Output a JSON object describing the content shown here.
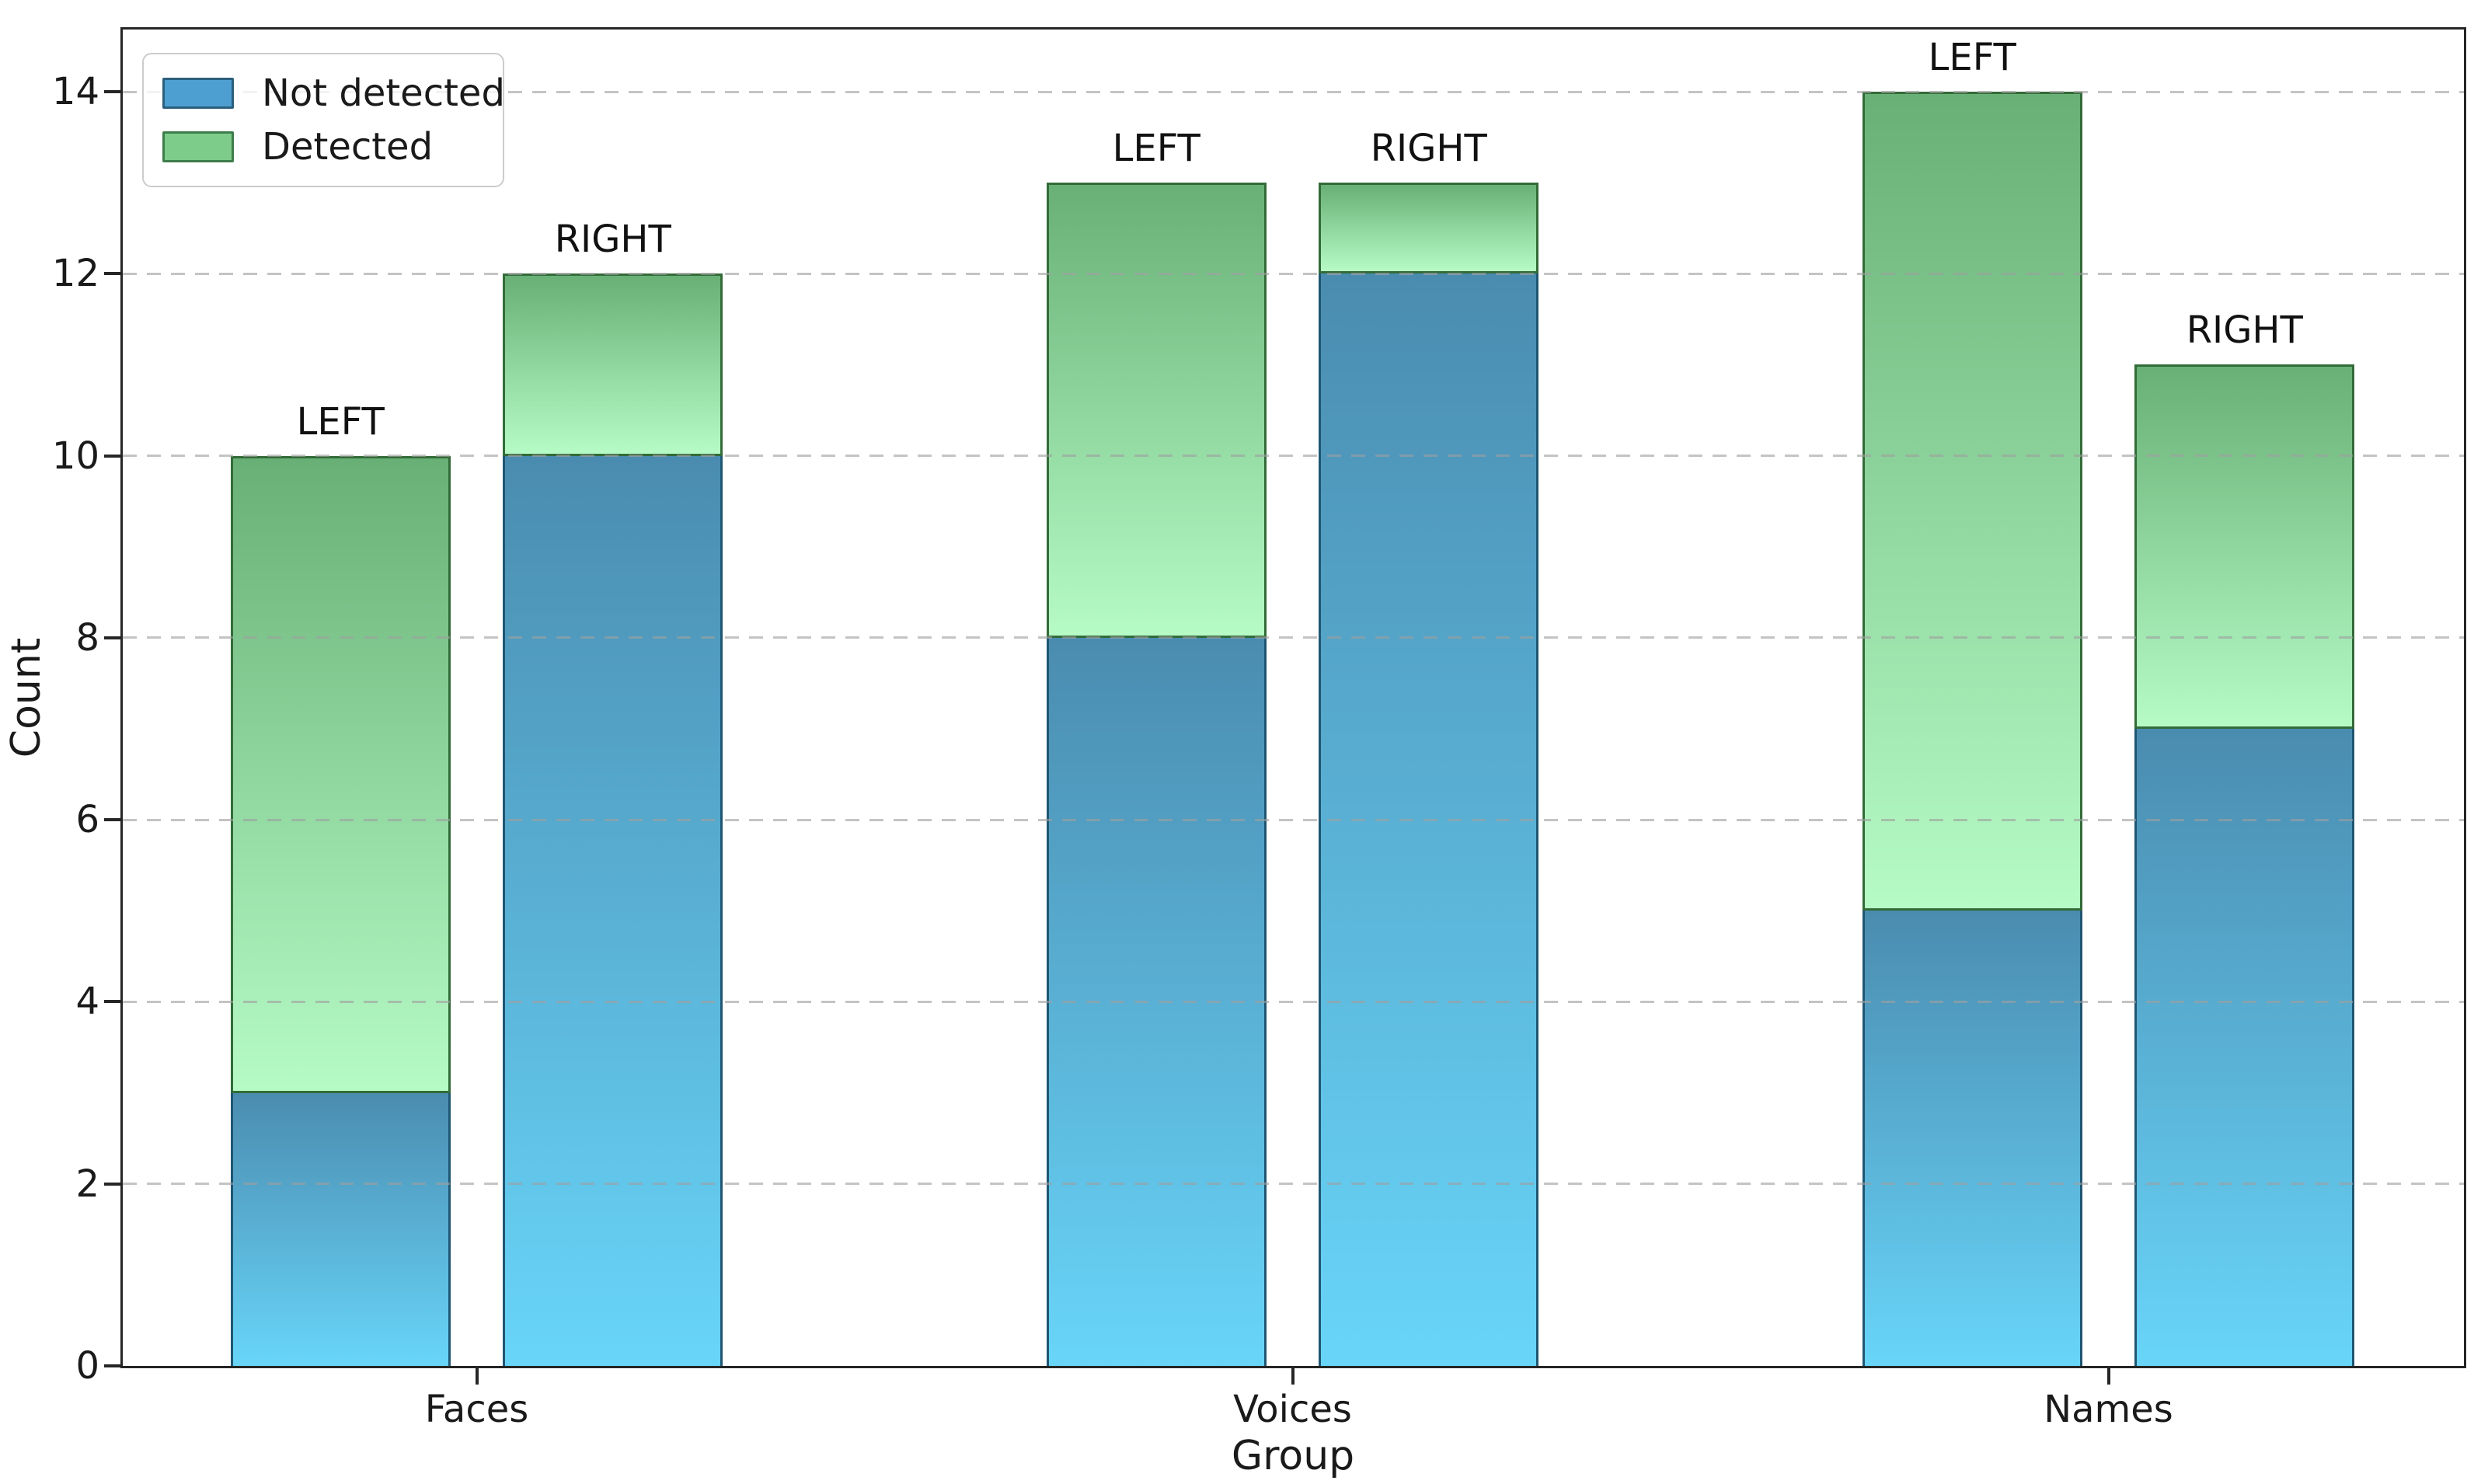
{
  "chart_data": {
    "type": "bar",
    "stacked": true,
    "title": "",
    "xlabel": "Group",
    "ylabel": "Count",
    "categories": [
      "Faces",
      "Voices",
      "Names"
    ],
    "sides": [
      "LEFT",
      "RIGHT"
    ],
    "series": [
      {
        "name": "Not detected",
        "values": [
          [
            3,
            10
          ],
          [
            8,
            12
          ],
          [
            5,
            7
          ]
        ]
      },
      {
        "name": "Detected",
        "values": [
          [
            7,
            2
          ],
          [
            5,
            1
          ],
          [
            9,
            4
          ]
        ]
      }
    ],
    "stack_totals": [
      [
        10,
        12
      ],
      [
        13,
        13
      ],
      [
        14,
        11
      ]
    ],
    "y_ticks": [
      "0",
      "2",
      "4",
      "6",
      "8",
      "10",
      "12",
      "14"
    ],
    "ylim": [
      0,
      14.7
    ],
    "grid": {
      "axis": "y",
      "style": "dashed"
    },
    "legend_position": "upper left"
  },
  "legend": {
    "items": [
      {
        "label": "Not detected",
        "swatch_color": "#4e9fd1",
        "swatch_border": "#2b5f7e"
      },
      {
        "label": "Detected",
        "swatch_color": "#7ecc8a",
        "swatch_border": "#3e7d4b"
      }
    ]
  },
  "style": {
    "background": "#ffffff",
    "axis_color": "#262626",
    "grid_color": "#9f9f9f",
    "text_color": "#1a1a1a",
    "not_detected_gradient_top": "#4a8cb0",
    "not_detected_gradient_bottom": "#68d5f9",
    "not_detected_edge": "#1f5672",
    "detected_gradient_top": "#68b076",
    "detected_gradient_bottom": "#b6fbc6",
    "detected_edge": "#336b38"
  }
}
